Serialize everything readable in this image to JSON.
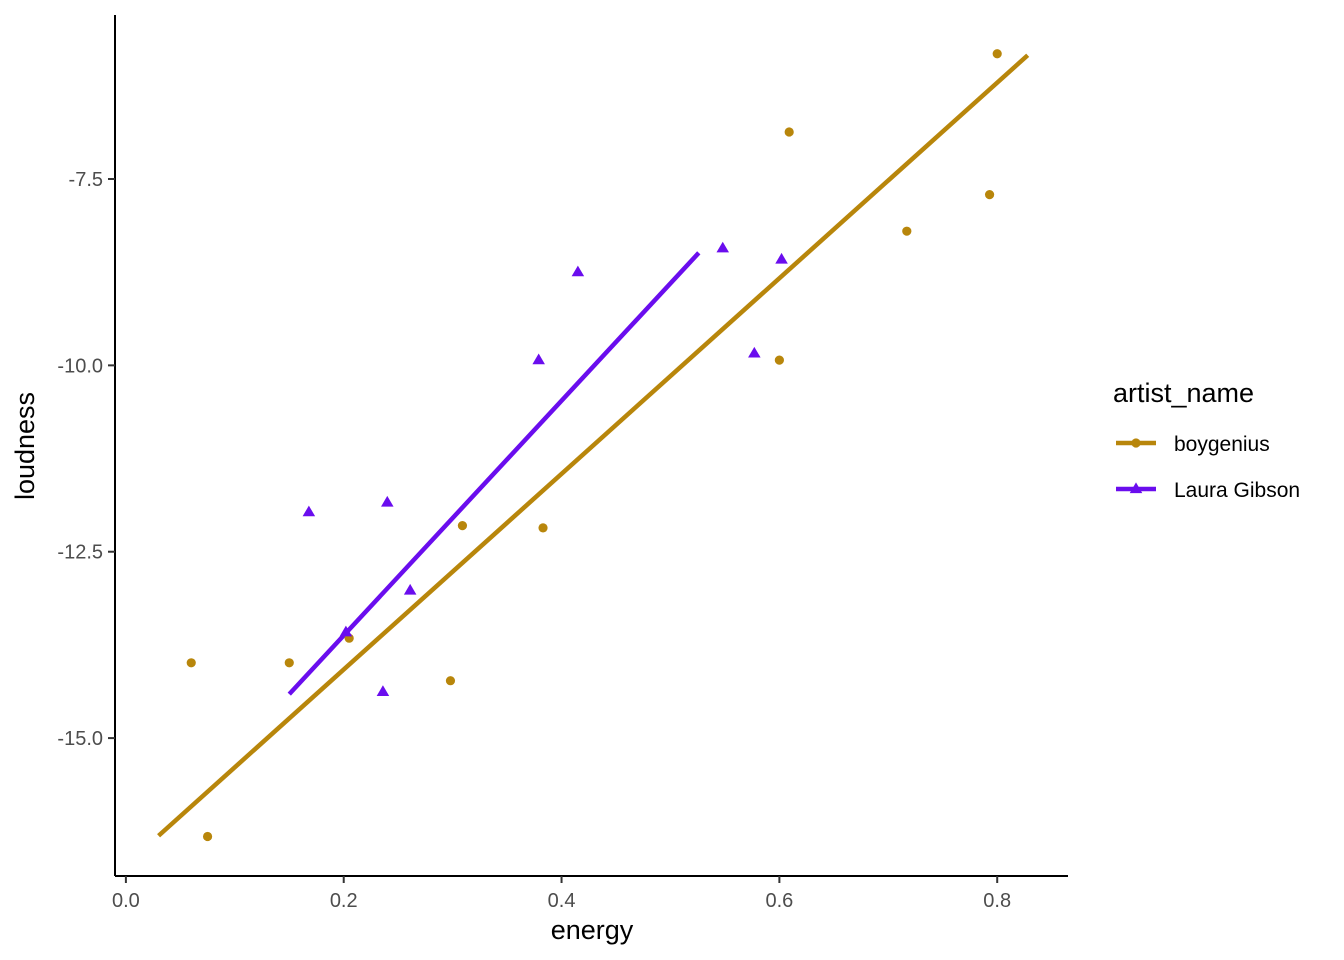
{
  "chart_data": {
    "type": "scatter",
    "xlabel": "energy",
    "ylabel": "loudness",
    "xlim": [
      -0.01,
      0.865
    ],
    "ylim": [
      -16.85,
      -5.3
    ],
    "x_ticks": [
      {
        "value": 0.0,
        "label": "0.0"
      },
      {
        "value": 0.2,
        "label": "0.2"
      },
      {
        "value": 0.4,
        "label": "0.4"
      },
      {
        "value": 0.6,
        "label": "0.6"
      },
      {
        "value": 0.8,
        "label": "0.8"
      }
    ],
    "y_ticks": [
      {
        "value": -7.5,
        "label": "-7.5"
      },
      {
        "value": -10.0,
        "label": "-10.0"
      },
      {
        "value": -12.5,
        "label": "-12.5"
      },
      {
        "value": -15.0,
        "label": "-15.0"
      }
    ],
    "grid": false,
    "legend": {
      "title": "artist_name",
      "position": "right"
    },
    "series": [
      {
        "name": "boygenius",
        "color": "#b8860b",
        "marker": "circle",
        "points": [
          {
            "x": 0.06,
            "y": -13.99
          },
          {
            "x": 0.075,
            "y": -16.32
          },
          {
            "x": 0.15,
            "y": -13.99
          },
          {
            "x": 0.205,
            "y": -13.66
          },
          {
            "x": 0.298,
            "y": -14.23
          },
          {
            "x": 0.309,
            "y": -12.15
          },
          {
            "x": 0.383,
            "y": -12.18
          },
          {
            "x": 0.6,
            "y": -9.93
          },
          {
            "x": 0.609,
            "y": -6.87
          },
          {
            "x": 0.717,
            "y": -8.2
          },
          {
            "x": 0.793,
            "y": -7.71
          },
          {
            "x": 0.8,
            "y": -5.82
          }
        ],
        "fit": {
          "x": [
            0.03,
            0.828
          ],
          "y": [
            -16.31,
            -5.84
          ]
        }
      },
      {
        "name": "Laura Gibson",
        "color": "#6a0dee",
        "marker": "triangle",
        "points": [
          {
            "x": 0.168,
            "y": -11.97
          },
          {
            "x": 0.202,
            "y": -13.58
          },
          {
            "x": 0.236,
            "y": -14.38
          },
          {
            "x": 0.24,
            "y": -11.84
          },
          {
            "x": 0.261,
            "y": -13.02
          },
          {
            "x": 0.379,
            "y": -9.93
          },
          {
            "x": 0.415,
            "y": -8.75
          },
          {
            "x": 0.548,
            "y": -8.43
          },
          {
            "x": 0.577,
            "y": -9.84
          },
          {
            "x": 0.602,
            "y": -8.58
          }
        ],
        "fit": {
          "x": [
            0.15,
            0.526
          ],
          "y": [
            -14.41,
            -8.49
          ]
        }
      }
    ]
  }
}
